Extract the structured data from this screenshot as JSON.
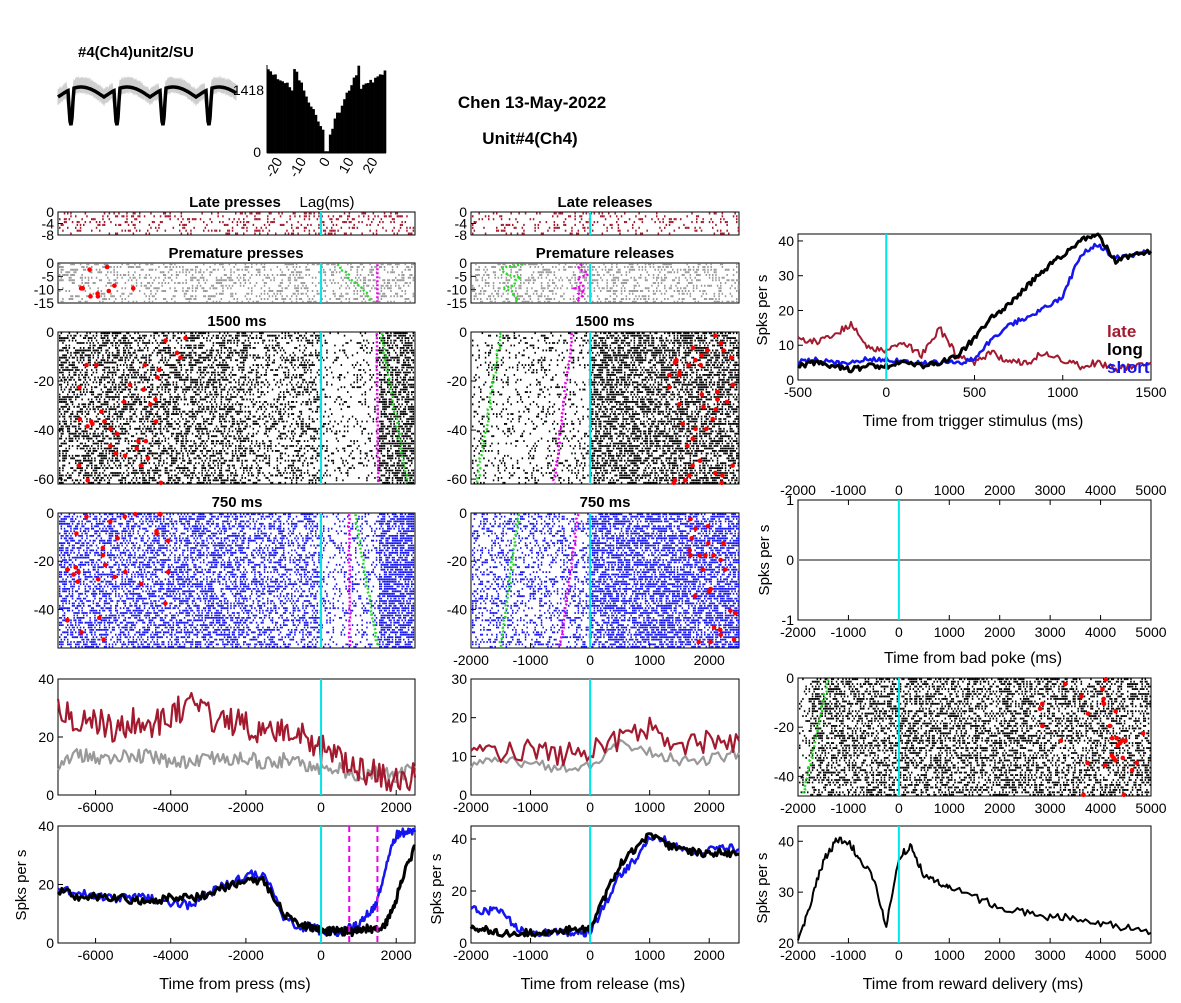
{
  "header": {
    "unit_label": "#4(Ch4)unit2/SU",
    "session": "Chen 13-May-2022",
    "unit": "Unit#4(Ch4)"
  },
  "colors": {
    "late": "#a31a2f",
    "premature": "#999999",
    "long": "#000000",
    "short": "#1515f0",
    "cyan": "#00e6e6",
    "green": "#22dd22",
    "magenta": "#ee00ee",
    "red": "#ff0000"
  },
  "labels": {
    "spks_per_s": "Spks per s",
    "lag": "Lag(ms)",
    "time_press": "Time from press (ms)",
    "time_release": "Time from release (ms)",
    "time_trigger": "Time from trigger stimulus (ms)",
    "time_badpoke": "Time from bad poke (ms)",
    "time_reward": "Time from reward delivery (ms)",
    "late_presses": "Late presses",
    "late_releases": "Late releases",
    "premature_presses": "Premature presses",
    "premature_releases": "Premature releases",
    "r1500_press": "1500 ms",
    "r1500_release": "1500 ms",
    "r750_press": "750 ms",
    "r750_release": "750 ms",
    "legend_late": "late",
    "legend_long": "long",
    "legend_short": "short"
  },
  "chart_data": [
    {
      "id": "waveform",
      "type": "line",
      "title": "#4(Ch4)unit2/SU",
      "description_values": {
        "peak_count": 4
      }
    },
    {
      "id": "autocorrelogram",
      "type": "bar",
      "xlabel": "Lag(ms)",
      "xticks": [
        -20,
        -10,
        0,
        10,
        20
      ],
      "yticks": [
        0,
        1418
      ],
      "ylim": [
        0,
        1418
      ]
    },
    {
      "id": "raster_late_press",
      "type": "scatter",
      "title": "Late presses",
      "xlim": [
        -7000,
        2500
      ],
      "yticks": [
        0,
        -4,
        -8
      ],
      "ylim": [
        -8,
        0
      ]
    },
    {
      "id": "raster_late_release",
      "type": "scatter",
      "title": "Late releases",
      "xlim": [
        -2000,
        2500
      ],
      "yticks": [
        0,
        -4,
        -8
      ],
      "ylim": [
        -8,
        0
      ]
    },
    {
      "id": "raster_prem_press",
      "type": "scatter",
      "title": "Premature presses",
      "xlim": [
        -7000,
        2500
      ],
      "yticks": [
        0,
        -5,
        -10,
        -15
      ],
      "ylim": [
        -15,
        0
      ]
    },
    {
      "id": "raster_prem_release",
      "type": "scatter",
      "title": "Premature releases",
      "xlim": [
        -2000,
        2500
      ],
      "yticks": [
        0,
        -5,
        -10,
        -15
      ],
      "ylim": [
        -15,
        0
      ]
    },
    {
      "id": "raster_1500_press",
      "type": "scatter",
      "title": "1500 ms",
      "xlim": [
        -7000,
        2500
      ],
      "yticks": [
        0,
        -20,
        -40,
        -60
      ],
      "ylim": [
        -62,
        0
      ]
    },
    {
      "id": "raster_1500_release",
      "type": "scatter",
      "title": "1500 ms",
      "xlim": [
        -2000,
        2500
      ],
      "yticks": [
        0,
        -20,
        -40,
        -60
      ],
      "ylim": [
        -62,
        0
      ]
    },
    {
      "id": "raster_750_press",
      "type": "scatter",
      "title": "750 ms",
      "xlim": [
        -7000,
        2500
      ],
      "yticks": [
        0,
        -20,
        -40
      ],
      "ylim": [
        -56,
        0
      ]
    },
    {
      "id": "raster_750_release",
      "type": "scatter",
      "title": "750 ms",
      "xlim": [
        -2000,
        2500
      ],
      "xticks": [
        -2000,
        -1000,
        0,
        1000,
        2000
      ],
      "yticks": [
        0,
        -20,
        -40
      ],
      "ylim": [
        -56,
        0
      ]
    },
    {
      "id": "psth_err_press",
      "type": "line",
      "xlim": [
        -7000,
        2500
      ],
      "ylim": [
        0,
        40
      ],
      "xticks": [
        -6000,
        -4000,
        -2000,
        0,
        2000
      ],
      "yticks": [
        0,
        20,
        40
      ],
      "x": [
        -7000,
        -6500,
        -6000,
        -5500,
        -5000,
        -4500,
        -4000,
        -3500,
        -3000,
        -2500,
        -2000,
        -1500,
        -1000,
        -500,
        0,
        500,
        1000,
        1500,
        2000,
        2500
      ],
      "series": [
        {
          "name": "late",
          "values": [
            30,
            24,
            26,
            22,
            25,
            24,
            28,
            31,
            27,
            26,
            24,
            20,
            22,
            20,
            16,
            12,
            9,
            7,
            6,
            6
          ]
        },
        {
          "name": "premature",
          "values": [
            10,
            14,
            13,
            12,
            14,
            13,
            12,
            11,
            13,
            12,
            13,
            11,
            12,
            11,
            9,
            9,
            7,
            8,
            6,
            10
          ]
        }
      ]
    },
    {
      "id": "psth_err_release",
      "type": "line",
      "xlim": [
        -2000,
        2500
      ],
      "ylim": [
        0,
        30
      ],
      "xticks": [
        -2000,
        -1000,
        0,
        1000,
        2000
      ],
      "yticks": [
        0,
        10,
        20,
        30
      ],
      "x": [
        -2000,
        -1500,
        -1000,
        -500,
        0,
        500,
        1000,
        1500,
        2000,
        2500
      ],
      "series": [
        {
          "name": "late",
          "values": [
            14,
            11,
            12,
            10,
            12,
            14,
            17,
            13,
            14,
            14
          ]
        },
        {
          "name": "premature",
          "values": [
            8,
            9,
            8,
            7,
            8,
            13,
            11,
            9,
            9,
            11
          ]
        }
      ]
    },
    {
      "id": "psth_press",
      "type": "line",
      "xlabel": "Time from press (ms)",
      "ylabel": "Spks per s",
      "xlim": [
        -7000,
        2500
      ],
      "ylim": [
        0,
        40
      ],
      "xticks": [
        -6000,
        -4000,
        -2000,
        0,
        2000
      ],
      "yticks": [
        0,
        20,
        40
      ],
      "x": [
        -7000,
        -6500,
        -6000,
        -5500,
        -5000,
        -4500,
        -4000,
        -3500,
        -3000,
        -2500,
        -2000,
        -1500,
        -1000,
        -500,
        -250,
        0,
        250,
        500,
        750,
        1000,
        1250,
        1500,
        1750,
        2000,
        2250,
        2500
      ],
      "series": [
        {
          "name": "long",
          "values": [
            18,
            16,
            16,
            15,
            15,
            14,
            16,
            15,
            17,
            19,
            22,
            21,
            10,
            6,
            5,
            4,
            4,
            4,
            4,
            4,
            5,
            5,
            7,
            15,
            25,
            33
          ]
        },
        {
          "name": "short",
          "values": [
            19,
            17,
            16,
            15,
            16,
            15,
            14,
            13,
            17,
            20,
            23,
            24,
            9,
            5,
            6,
            4,
            4,
            3,
            5,
            6,
            10,
            14,
            28,
            37,
            38,
            38
          ]
        }
      ]
    },
    {
      "id": "psth_release",
      "type": "line",
      "xlabel": "Time from release (ms)",
      "ylabel": "Spks per s",
      "xlim": [
        -2000,
        2500
      ],
      "ylim": [
        0,
        45
      ],
      "xticks": [
        -2000,
        -1000,
        0,
        1000,
        2000
      ],
      "yticks": [
        0,
        20,
        40
      ],
      "x": [
        -2000,
        -1750,
        -1500,
        -1250,
        -1000,
        -750,
        -500,
        -250,
        0,
        250,
        500,
        750,
        1000,
        1250,
        1500,
        1750,
        2000,
        2250,
        2500
      ],
      "series": [
        {
          "name": "long",
          "values": [
            6,
            5,
            4,
            4,
            4,
            4,
            5,
            5,
            5,
            18,
            30,
            36,
            42,
            38,
            36,
            35,
            34,
            35,
            34
          ]
        },
        {
          "name": "short",
          "values": [
            14,
            12,
            13,
            6,
            4,
            4,
            4,
            4,
            4,
            15,
            26,
            32,
            41,
            40,
            37,
            34,
            36,
            37,
            36
          ]
        }
      ]
    },
    {
      "id": "psth_trigger",
      "type": "line",
      "xlabel": "Time from trigger stimulus (ms)",
      "ylabel": "Spks per s",
      "xlim": [
        -500,
        1500
      ],
      "ylim": [
        0,
        42
      ],
      "xticks": [
        -500,
        0,
        500,
        1000,
        1500
      ],
      "yticks": [
        0,
        10,
        20,
        30,
        40
      ],
      "x": [
        -500,
        -400,
        -300,
        -200,
        -100,
        0,
        100,
        200,
        300,
        400,
        500,
        600,
        700,
        800,
        900,
        1000,
        1100,
        1200,
        1300,
        1400,
        1500
      ],
      "series": [
        {
          "name": "late",
          "values": [
            12,
            11,
            13,
            16,
            9,
            8,
            11,
            7,
            15,
            7,
            5,
            8,
            5,
            5,
            8,
            6,
            4,
            5,
            3,
            4,
            5
          ]
        },
        {
          "name": "long",
          "values": [
            4,
            5,
            4,
            3,
            4,
            4,
            5,
            4,
            5,
            7,
            12,
            18,
            22,
            27,
            32,
            36,
            40,
            42,
            34,
            36,
            37
          ]
        },
        {
          "name": "short",
          "values": [
            5,
            6,
            5,
            5,
            6,
            6,
            5,
            5,
            5,
            5,
            6,
            12,
            16,
            18,
            21,
            24,
            36,
            39,
            35,
            36,
            37
          ]
        }
      ],
      "legend": [
        "late",
        "long",
        "short"
      ]
    },
    {
      "id": "psth_badpoke",
      "type": "line",
      "xlabel": "Time from bad poke (ms)",
      "ylabel": "Spks per s",
      "xlim": [
        -2000,
        5000
      ],
      "ylim": [
        -1,
        1
      ],
      "xticks": [
        -2000,
        -1000,
        0,
        1000,
        2000,
        3000,
        4000,
        5000
      ],
      "yticks": [
        -1,
        0,
        1
      ],
      "series": [
        {
          "values": [
            0,
            0
          ]
        }
      ],
      "x": [
        -2000,
        5000
      ]
    },
    {
      "id": "raster_reward",
      "type": "scatter",
      "xlim": [
        -2000,
        5000
      ],
      "ylim": [
        -48,
        0
      ],
      "xticks": [
        -2000,
        -1000,
        0,
        1000,
        2000,
        3000,
        4000,
        5000
      ],
      "yticks": [
        0,
        -20,
        -40
      ]
    },
    {
      "id": "psth_reward",
      "type": "line",
      "xlabel": "Time from reward delivery (ms)",
      "ylabel": "Spks per s",
      "xlim": [
        -2000,
        5000
      ],
      "ylim": [
        20,
        43
      ],
      "xticks": [
        -2000,
        -1000,
        0,
        1000,
        2000,
        3000,
        4000,
        5000
      ],
      "yticks": [
        20,
        30,
        40
      ],
      "x": [
        -2000,
        -1750,
        -1500,
        -1250,
        -1000,
        -750,
        -500,
        -250,
        0,
        250,
        500,
        750,
        1000,
        1500,
        2000,
        2500,
        3000,
        3500,
        4000,
        4500,
        5000
      ],
      "series": [
        {
          "name": "reward",
          "values": [
            20,
            28,
            36,
            40,
            40,
            36,
            33,
            23,
            37,
            39,
            33,
            32,
            31,
            29,
            27,
            26,
            25,
            25,
            24,
            23,
            22
          ]
        }
      ]
    }
  ]
}
